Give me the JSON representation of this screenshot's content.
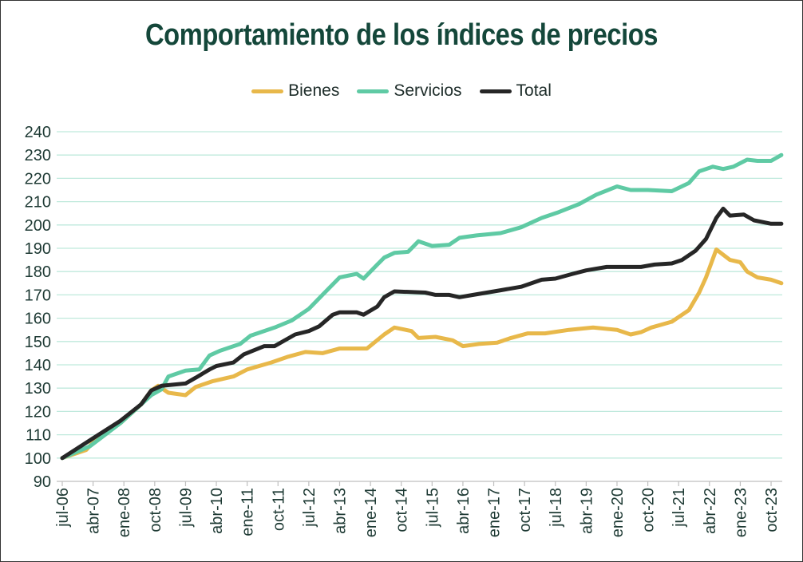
{
  "chart_data": {
    "type": "line",
    "title": "Comportamiento de los índices de precios",
    "xlabel": "",
    "ylabel": "",
    "x_unit": "months since jul-06",
    "ylim": [
      90,
      240
    ],
    "yticks": [
      "90",
      "100",
      "110",
      "120",
      "130",
      "140",
      "150",
      "160",
      "170",
      "180",
      "190",
      "200",
      "210",
      "220",
      "230",
      "240"
    ],
    "xticks": [
      "jul-06",
      "abr-07",
      "ene-08",
      "oct-08",
      "jul-09",
      "abr-10",
      "ene-11",
      "oct-11",
      "jul-12",
      "abr-13",
      "ene-14",
      "oct-14",
      "jul-15",
      "abr-16",
      "ene-17",
      "oct-17",
      "jul-18",
      "abr-19",
      "ene-20",
      "oct-20",
      "jul-21",
      "abr-22",
      "ene-23",
      "oct-23"
    ],
    "xlim": [
      0,
      210
    ],
    "grid": true,
    "legend_position": "top-center",
    "series": [
      {
        "name": "Bienes",
        "color": "#e8b84a",
        "points": [
          [
            0,
            100
          ],
          [
            7,
            103.5
          ],
          [
            10,
            108.5
          ],
          [
            17,
            115
          ],
          [
            23,
            123
          ],
          [
            26,
            129
          ],
          [
            28,
            131
          ],
          [
            31,
            128
          ],
          [
            36,
            127
          ],
          [
            39,
            130.5
          ],
          [
            44,
            133
          ],
          [
            50,
            135
          ],
          [
            54,
            138
          ],
          [
            61,
            141
          ],
          [
            66,
            143.5
          ],
          [
            71,
            145.5
          ],
          [
            76,
            145
          ],
          [
            81,
            147
          ],
          [
            89,
            147
          ],
          [
            94,
            153
          ],
          [
            97,
            156
          ],
          [
            102,
            154.5
          ],
          [
            104,
            151.5
          ],
          [
            109,
            152
          ],
          [
            114,
            150.5
          ],
          [
            117,
            148
          ],
          [
            122,
            149
          ],
          [
            127,
            149.5
          ],
          [
            131,
            151.5
          ],
          [
            136,
            153.5
          ],
          [
            141,
            153.5
          ],
          [
            148,
            155
          ],
          [
            155,
            156
          ],
          [
            162,
            155
          ],
          [
            166,
            153
          ],
          [
            169,
            154
          ],
          [
            172,
            156
          ],
          [
            178,
            158.5
          ],
          [
            183,
            163.5
          ],
          [
            186,
            171
          ],
          [
            188,
            177.5
          ],
          [
            191,
            189.5
          ],
          [
            195,
            185
          ],
          [
            198,
            184
          ],
          [
            200,
            180
          ],
          [
            203,
            177.5
          ],
          [
            207,
            176.5
          ],
          [
            210,
            175
          ]
        ]
      },
      {
        "name": "Servicios",
        "color": "#5fcaa4",
        "points": [
          [
            0,
            100
          ],
          [
            8,
            105
          ],
          [
            17,
            115
          ],
          [
            23,
            123
          ],
          [
            26,
            127
          ],
          [
            29,
            129.5
          ],
          [
            31,
            135
          ],
          [
            36,
            137.5
          ],
          [
            40,
            138
          ],
          [
            43,
            144
          ],
          [
            46,
            146
          ],
          [
            52,
            149
          ],
          [
            55,
            152.5
          ],
          [
            62,
            156
          ],
          [
            67,
            159
          ],
          [
            72,
            164
          ],
          [
            76,
            170
          ],
          [
            79,
            174.5
          ],
          [
            81,
            177.5
          ],
          [
            86,
            179
          ],
          [
            88,
            177
          ],
          [
            92,
            183
          ],
          [
            94,
            186
          ],
          [
            97,
            188
          ],
          [
            101,
            188.5
          ],
          [
            104,
            193
          ],
          [
            108,
            191
          ],
          [
            113,
            191.5
          ],
          [
            116,
            194.5
          ],
          [
            121,
            195.5
          ],
          [
            128,
            196.5
          ],
          [
            134,
            199
          ],
          [
            140,
            203
          ],
          [
            145,
            205.5
          ],
          [
            151,
            209
          ],
          [
            156,
            213
          ],
          [
            162,
            216.5
          ],
          [
            166,
            215
          ],
          [
            171,
            215
          ],
          [
            178,
            214.5
          ],
          [
            183,
            218
          ],
          [
            186,
            223
          ],
          [
            190,
            225
          ],
          [
            193,
            224
          ],
          [
            196,
            225
          ],
          [
            200,
            228
          ],
          [
            203,
            227.5
          ],
          [
            207,
            227.5
          ],
          [
            210,
            230
          ]
        ]
      },
      {
        "name": "Total",
        "color": "#262626",
        "points": [
          [
            0,
            100
          ],
          [
            9,
            108.5
          ],
          [
            17,
            116
          ],
          [
            23,
            123
          ],
          [
            26,
            129
          ],
          [
            29,
            131
          ],
          [
            36,
            132
          ],
          [
            39,
            134.5
          ],
          [
            43,
            138
          ],
          [
            45,
            139.5
          ],
          [
            50,
            141
          ],
          [
            53,
            144.5
          ],
          [
            59,
            148
          ],
          [
            62,
            148
          ],
          [
            68,
            153
          ],
          [
            72,
            154.5
          ],
          [
            75,
            156.5
          ],
          [
            79,
            161.5
          ],
          [
            81,
            162.5
          ],
          [
            86,
            162.5
          ],
          [
            88,
            161.5
          ],
          [
            92,
            165
          ],
          [
            94,
            169
          ],
          [
            97,
            171.5
          ],
          [
            106,
            171
          ],
          [
            109,
            170
          ],
          [
            113,
            170
          ],
          [
            116,
            169
          ],
          [
            120,
            170
          ],
          [
            124,
            171
          ],
          [
            128,
            172
          ],
          [
            134,
            173.5
          ],
          [
            140,
            176.5
          ],
          [
            144,
            177
          ],
          [
            149,
            179
          ],
          [
            153,
            180.5
          ],
          [
            159,
            182
          ],
          [
            164,
            182
          ],
          [
            169,
            182
          ],
          [
            173,
            183
          ],
          [
            178,
            183.5
          ],
          [
            181,
            185
          ],
          [
            185,
            189
          ],
          [
            188,
            194
          ],
          [
            191,
            203
          ],
          [
            193,
            207
          ],
          [
            195,
            204
          ],
          [
            199,
            204.5
          ],
          [
            202,
            202
          ],
          [
            207,
            200.5
          ],
          [
            210,
            200.5
          ]
        ]
      }
    ]
  }
}
